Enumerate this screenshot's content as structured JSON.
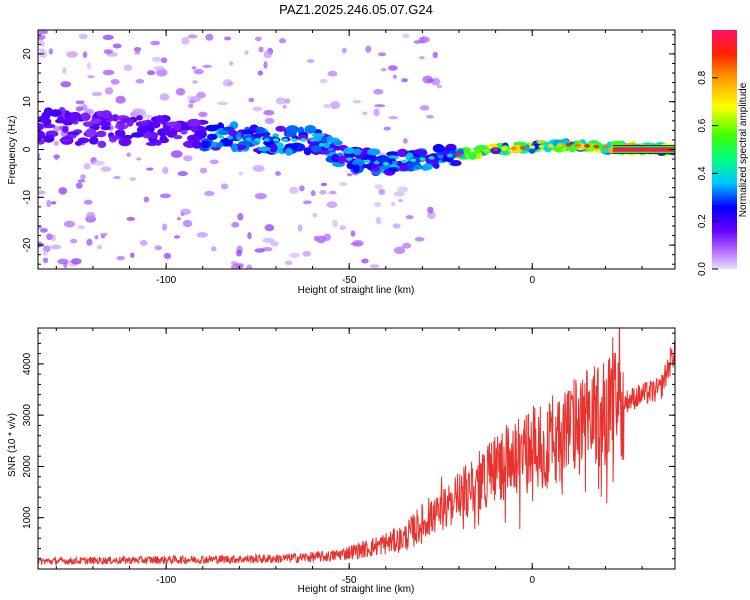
{
  "colors": {
    "snr_line": "#e8322e",
    "frame": "#000000",
    "background": "#ffffff"
  },
  "chart_data": [
    {
      "type": "heatmap",
      "title": "PAZ1.2025.246.05.07.G24",
      "xlabel": "Height of straight line (km)",
      "ylabel": "Frequency (Hz)",
      "xlim": [
        -135,
        39
      ],
      "ylim": [
        -25,
        25
      ],
      "x_ticks": [
        -100,
        -50,
        0
      ],
      "y_ticks": [
        -20,
        -10,
        0,
        10,
        20
      ],
      "colorbar": {
        "label": "Normalized spectral amplitude",
        "range": [
          0,
          1
        ],
        "ticks": [
          "0.0",
          "0.2",
          "0.4",
          "0.6",
          "0.8"
        ],
        "colormap": "hsv-violet-to-red"
      },
      "ridge": {
        "x": [
          -135,
          -110,
          -90,
          -75,
          -60,
          -50,
          -40,
          -30,
          -20,
          -10,
          0,
          10,
          20,
          39
        ],
        "y": [
          5,
          4,
          3,
          2,
          2,
          -2,
          -3,
          -2,
          -1,
          0,
          0.5,
          1,
          0.5,
          0
        ]
      }
    },
    {
      "type": "line",
      "xlabel": "Height of straight line (km)",
      "ylabel": "SNR (10 * v/v)",
      "xlim": [
        -135,
        39
      ],
      "ylim": [
        0,
        4700
      ],
      "x_ticks": [
        -100,
        -50,
        0
      ],
      "y_ticks": [
        1000,
        2000,
        3000,
        4000
      ],
      "series": [
        {
          "trend_x": [
            -135,
            -100,
            -70,
            -55,
            -45,
            -35,
            -30,
            -25,
            -20,
            -10,
            0,
            10,
            20,
            30,
            35,
            39
          ],
          "trend_y": [
            150,
            180,
            200,
            250,
            400,
            600,
            900,
            1100,
            1400,
            2000,
            2300,
            2700,
            3100,
            3400,
            3500,
            4300
          ]
        }
      ]
    }
  ]
}
